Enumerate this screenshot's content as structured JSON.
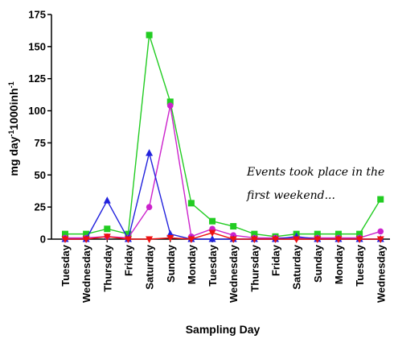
{
  "chart_data": {
    "type": "line",
    "xlabel": "Sampling Day",
    "ylabel": {
      "base": "mg day",
      "exp1": "-1",
      "mid": "1000inh",
      "exp2": "-1"
    },
    "ylim": [
      0,
      175
    ],
    "yticks": [
      0,
      25,
      50,
      75,
      100,
      125,
      150,
      175
    ],
    "categories": [
      "Tuesday",
      "Wednesday",
      "Thursday",
      "Friday",
      "Saturday",
      "Sunday",
      "Monday",
      "Tuesday",
      "Wednesday",
      "Thursday",
      "Friday",
      "Saturday",
      "Sunday",
      "Monday",
      "Tuesday",
      "Wednesday"
    ],
    "annotation": {
      "line1": "Events took place in the",
      "line2": "first weekend..."
    },
    "grid": false,
    "series": [
      {
        "color": "#22cc22",
        "marker": "square",
        "values": [
          4,
          4,
          8,
          4,
          159,
          107,
          28,
          14,
          10,
          4,
          2,
          4,
          4,
          4,
          4,
          31
        ]
      },
      {
        "color": "#cc22cc",
        "marker": "circle",
        "values": [
          1,
          1,
          2,
          1,
          25,
          104,
          2,
          8,
          3,
          1,
          1,
          1,
          1,
          1,
          1,
          6
        ]
      },
      {
        "color": "#2222dd",
        "marker": "triangle-up",
        "values": [
          0,
          0,
          30,
          0,
          67,
          4,
          0,
          0,
          0,
          0,
          0,
          2,
          0,
          0,
          0,
          0
        ]
      },
      {
        "color": "#ee1111",
        "marker": "triangle-down",
        "values": [
          0,
          0,
          2,
          0,
          0,
          1,
          0,
          5,
          0,
          0,
          0,
          0,
          0,
          0,
          0,
          0
        ]
      }
    ]
  }
}
